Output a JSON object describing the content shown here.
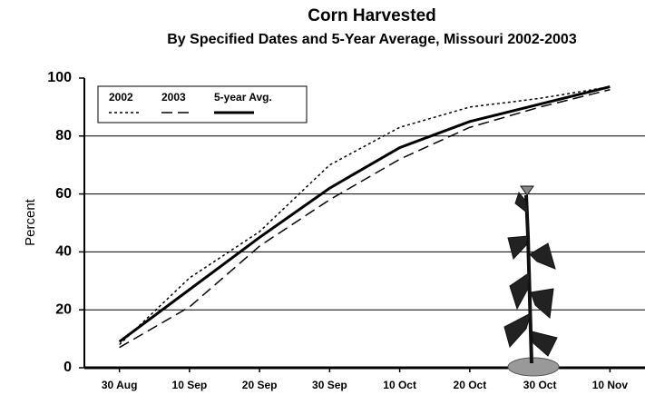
{
  "chart_data": {
    "type": "line",
    "title": "Corn Harvested",
    "subtitle": "By Specified Dates and 5-Year Average, Missouri 2002-2003",
    "y_label": "Percent",
    "categories": [
      "30 Aug",
      "10 Sep",
      "20 Sep",
      "30 Sep",
      "10 Oct",
      "20 Oct",
      "30 Oct",
      "10 Nov"
    ],
    "series": [
      {
        "name": "2002",
        "color": "#000000",
        "dash": "dotted",
        "values": [
          8,
          31,
          47,
          70,
          83,
          90,
          93,
          97
        ]
      },
      {
        "name": "2003",
        "color": "#000000",
        "dash": "dashed",
        "values": [
          7,
          21,
          42,
          58,
          72,
          83,
          90,
          96
        ]
      },
      {
        "name": "5-year Avg.",
        "color": "#000000",
        "dash": "solid",
        "values": [
          9,
          27,
          45,
          62,
          76,
          85,
          91,
          97
        ]
      }
    ],
    "ylim": [
      0,
      100
    ],
    "yticks": [
      0,
      20,
      40,
      60,
      80,
      100
    ],
    "grid": true,
    "legend": "upper left"
  }
}
